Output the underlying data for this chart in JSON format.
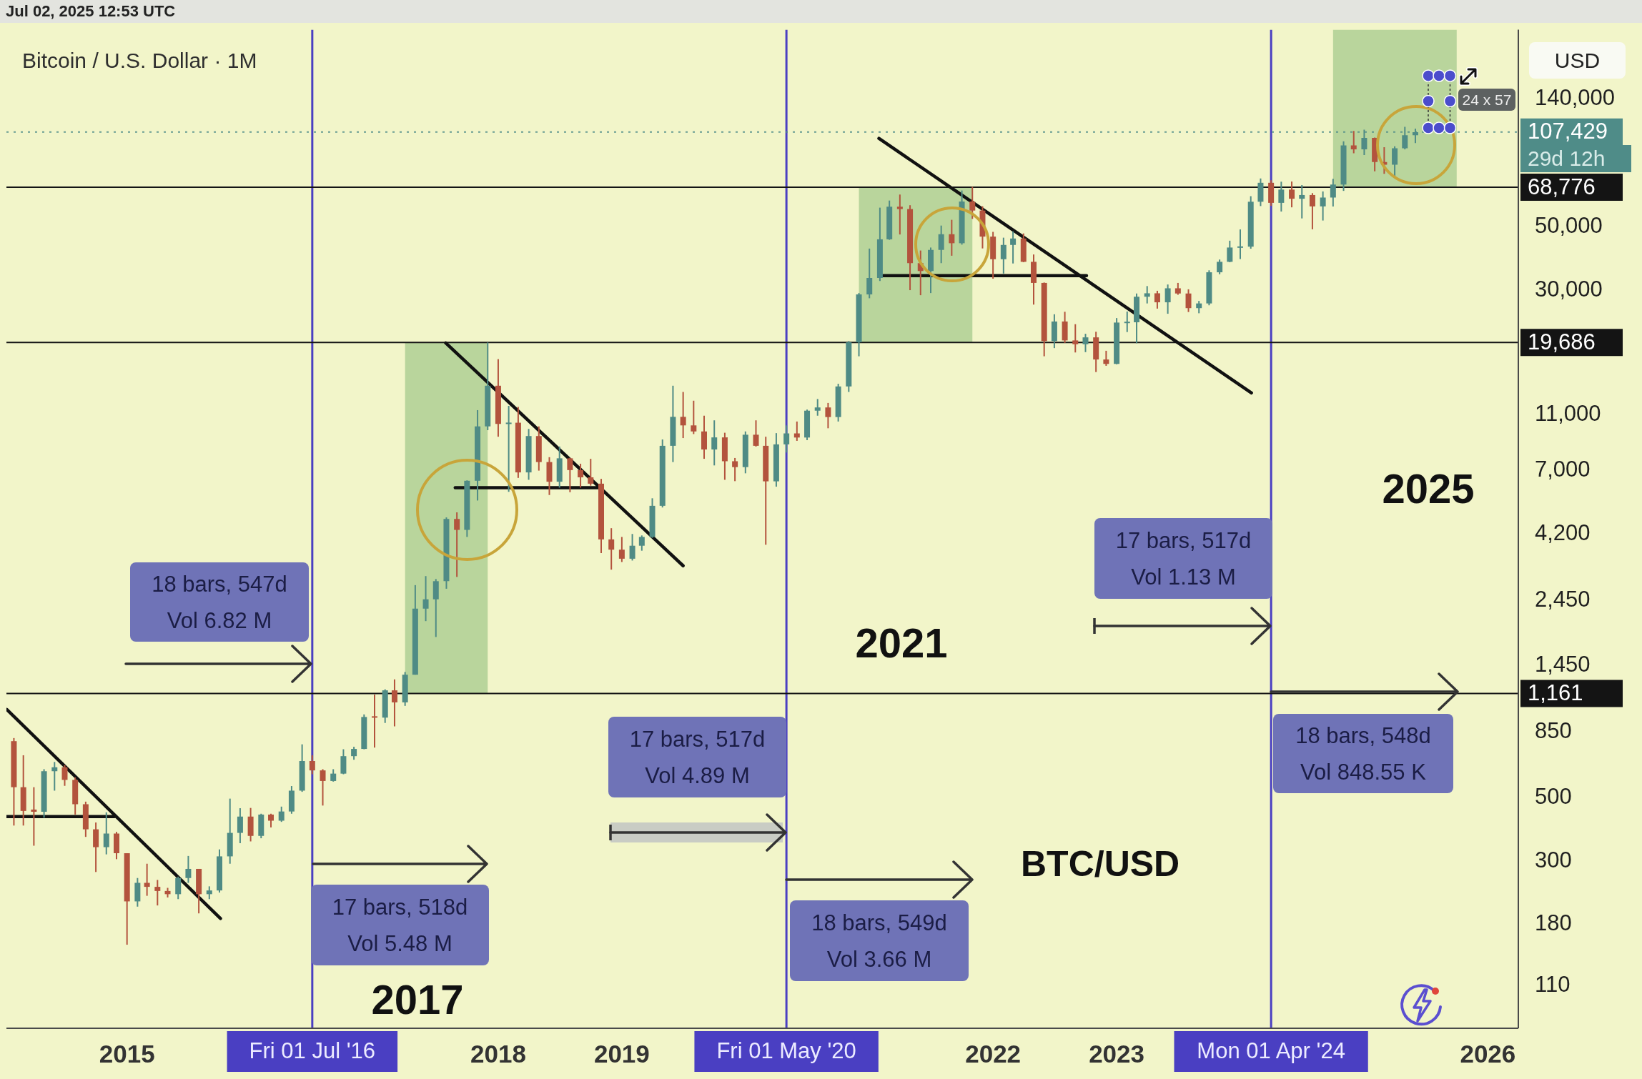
{
  "chart_data": {
    "type": "candlestick",
    "title": "Bitcoin / U.S. Dollar · 1M",
    "ylabel": "USD",
    "log": true,
    "xlim": [
      "2014-01-10",
      "2026-04-01"
    ],
    "xticks": [
      "2015",
      "2018",
      "2019",
      "2022",
      "2023",
      "2026"
    ],
    "ylim": [
      78,
      245000
    ],
    "yticks": [
      110,
      180,
      300,
      500,
      850,
      {
        "value": 1450,
        "label": "1,450"
      },
      {
        "value": 2450,
        "label": "2,450"
      },
      {
        "value": 4200,
        "label": "4,200"
      },
      {
        "value": 7000,
        "label": "7,000"
      },
      {
        "value": 11000,
        "label": "11,000"
      },
      {
        "value": 30000,
        "label": "30,000"
      },
      {
        "value": 50000,
        "label": "50,000"
      },
      {
        "value": 140000,
        "label": "140,000"
      }
    ],
    "series": [
      {
        "type": "candlestick",
        "x": [
          "2014-02",
          "2014-03",
          "2014-04",
          "2014-05",
          "2014-06",
          "2014-07",
          "2014-08",
          "2014-09",
          "2014-10",
          "2014-11",
          "2014-12",
          "2015-01",
          "2015-02",
          "2015-03",
          "2015-04",
          "2015-05",
          "2015-06",
          "2015-07",
          "2015-08",
          "2015-09",
          "2015-10",
          "2015-11",
          "2015-12",
          "2016-01",
          "2016-02",
          "2016-03",
          "2016-04",
          "2016-05",
          "2016-06",
          "2016-07",
          "2016-08",
          "2016-09",
          "2016-10",
          "2016-11",
          "2016-12",
          "2017-01",
          "2017-02",
          "2017-03",
          "2017-04",
          "2017-05",
          "2017-06",
          "2017-07",
          "2017-08",
          "2017-09",
          "2017-10",
          "2017-11",
          "2017-12",
          "2018-01",
          "2018-02",
          "2018-03",
          "2018-04",
          "2018-05",
          "2018-06",
          "2018-07",
          "2018-08",
          "2018-09",
          "2018-10",
          "2018-11",
          "2018-12",
          "2019-01",
          "2019-02",
          "2019-03",
          "2019-04",
          "2019-05",
          "2019-06",
          "2019-07",
          "2019-08",
          "2019-09",
          "2019-10",
          "2019-11",
          "2019-12",
          "2020-01",
          "2020-02",
          "2020-03",
          "2020-04",
          "2020-05",
          "2020-06",
          "2020-07",
          "2020-08",
          "2020-09",
          "2020-10",
          "2020-11",
          "2020-12",
          "2021-01",
          "2021-02",
          "2021-03",
          "2021-04",
          "2021-05",
          "2021-06",
          "2021-07",
          "2021-08",
          "2021-09",
          "2021-10",
          "2021-11",
          "2021-12",
          "2022-01",
          "2022-02",
          "2022-03",
          "2022-04",
          "2022-05",
          "2022-06",
          "2022-07",
          "2022-08",
          "2022-09",
          "2022-10",
          "2022-11",
          "2022-12",
          "2023-01",
          "2023-02",
          "2023-03",
          "2023-04",
          "2023-05",
          "2023-06",
          "2023-07",
          "2023-08",
          "2023-09",
          "2023-10",
          "2023-11",
          "2023-12",
          "2024-01",
          "2024-02",
          "2024-03",
          "2024-04",
          "2024-05",
          "2024-06",
          "2024-07",
          "2024-08",
          "2024-09",
          "2024-10",
          "2024-11",
          "2024-12",
          "2025-01",
          "2025-02",
          "2025-03",
          "2025-04",
          "2025-05",
          "2025-06"
        ],
        "ohlc": [
          [
            790,
            810,
            400,
            545
          ],
          [
            545,
            705,
            400,
            450
          ],
          [
            455,
            545,
            340,
            447
          ],
          [
            447,
            630,
            426,
            620
          ],
          [
            620,
            668,
            530,
            640
          ],
          [
            640,
            651,
            551,
            578
          ],
          [
            578,
            590,
            437,
            475
          ],
          [
            475,
            485,
            365,
            388
          ],
          [
            388,
            410,
            275,
            336
          ],
          [
            336,
            445,
            317,
            375
          ],
          [
            375,
            380,
            305,
            320
          ],
          [
            320,
            320,
            153,
            217
          ],
          [
            217,
            262,
            208,
            252
          ],
          [
            252,
            294,
            227,
            244
          ],
          [
            244,
            258,
            210,
            236
          ],
          [
            236,
            242,
            224,
            230
          ],
          [
            230,
            265,
            221,
            262
          ],
          [
            262,
            313,
            252,
            282
          ],
          [
            282,
            282,
            197,
            230
          ],
          [
            230,
            245,
            221,
            237
          ],
          [
            237,
            330,
            233,
            312
          ],
          [
            312,
            497,
            294,
            377
          ],
          [
            377,
            460,
            347,
            430
          ],
          [
            430,
            461,
            352,
            368
          ],
          [
            368,
            440,
            361,
            437
          ],
          [
            437,
            440,
            394,
            416
          ],
          [
            416,
            466,
            412,
            448
          ],
          [
            448,
            550,
            440,
            530
          ],
          [
            530,
            770,
            525,
            673
          ],
          [
            673,
            705,
            605,
            624
          ],
          [
            624,
            630,
            470,
            573
          ],
          [
            573,
            630,
            570,
            608
          ],
          [
            608,
            740,
            605,
            700
          ],
          [
            700,
            755,
            680,
            742
          ],
          [
            742,
            980,
            740,
            960
          ],
          [
            965,
            1150,
            750,
            955
          ],
          [
            955,
            1200,
            915,
            1190
          ],
          [
            1190,
            1300,
            890,
            1080
          ],
          [
            1080,
            1380,
            1050,
            1350
          ],
          [
            1350,
            2780,
            1350,
            2300
          ],
          [
            2300,
            2990,
            2080,
            2480
          ],
          [
            2480,
            2920,
            1830,
            2870
          ],
          [
            2870,
            4800,
            2700,
            4740
          ],
          [
            4740,
            5000,
            2970,
            4340
          ],
          [
            4340,
            6470,
            4100,
            6450
          ],
          [
            6450,
            11400,
            5500,
            10000
          ],
          [
            10000,
            19670,
            9700,
            13880
          ],
          [
            13880,
            17200,
            9200,
            10200
          ],
          [
            10200,
            11800,
            5900,
            10300
          ],
          [
            10300,
            11700,
            6600,
            6900
          ],
          [
            6900,
            9800,
            6500,
            9250
          ],
          [
            9250,
            10000,
            7000,
            7500
          ],
          [
            7500,
            7800,
            5750,
            6400
          ],
          [
            6400,
            8500,
            6100,
            7730
          ],
          [
            7730,
            7760,
            5880,
            7030
          ],
          [
            7030,
            7400,
            6100,
            6630
          ],
          [
            6630,
            7700,
            6200,
            6300
          ],
          [
            6300,
            6550,
            3600,
            4020
          ],
          [
            4020,
            4400,
            3150,
            3700
          ],
          [
            3700,
            4100,
            3350,
            3440
          ],
          [
            3440,
            4200,
            3390,
            3820
          ],
          [
            3820,
            4150,
            3670,
            4100
          ],
          [
            4100,
            5600,
            4070,
            5270
          ],
          [
            5270,
            9000,
            5200,
            8550
          ],
          [
            8550,
            13880,
            7500,
            10800
          ],
          [
            10800,
            13200,
            9100,
            10080
          ],
          [
            10080,
            12300,
            9400,
            9600
          ],
          [
            9600,
            10900,
            7700,
            8300
          ],
          [
            8300,
            10500,
            7300,
            9150
          ],
          [
            9150,
            9500,
            6500,
            7550
          ],
          [
            7550,
            7750,
            6430,
            7200
          ],
          [
            7200,
            9600,
            6850,
            9350
          ],
          [
            9350,
            10500,
            8500,
            8550
          ],
          [
            8550,
            9200,
            3850,
            6420
          ],
          [
            6420,
            9470,
            6150,
            8650
          ],
          [
            8650,
            10080,
            8100,
            9450
          ],
          [
            9450,
            10400,
            8900,
            9140
          ],
          [
            9140,
            11450,
            8950,
            11350
          ],
          [
            11350,
            12470,
            10900,
            11650
          ],
          [
            11650,
            12080,
            9850,
            10780
          ],
          [
            10780,
            14100,
            10400,
            13800
          ],
          [
            13800,
            19900,
            13200,
            19700
          ],
          [
            19700,
            29300,
            17600,
            28990
          ],
          [
            28990,
            41950,
            28100,
            33100
          ],
          [
            33100,
            58350,
            32300,
            45200
          ],
          [
            45200,
            61790,
            45000,
            58800
          ],
          [
            58800,
            64850,
            47000,
            57700
          ],
          [
            57700,
            59500,
            30000,
            37300
          ],
          [
            37300,
            41300,
            28800,
            35000
          ],
          [
            35000,
            42300,
            29300,
            41500
          ],
          [
            41500,
            50500,
            37300,
            47100
          ],
          [
            47100,
            52900,
            39600,
            43800
          ],
          [
            43800,
            67000,
            43300,
            61300
          ],
          [
            61300,
            69000,
            53300,
            57000
          ],
          [
            57000,
            59000,
            42000,
            46200
          ],
          [
            46200,
            48000,
            32900,
            38500
          ],
          [
            38500,
            45800,
            34300,
            43200
          ],
          [
            43200,
            48200,
            37200,
            45500
          ],
          [
            45500,
            47400,
            37600,
            37700
          ],
          [
            37700,
            40000,
            26700,
            31800
          ],
          [
            31800,
            31900,
            17600,
            19900
          ],
          [
            19900,
            24700,
            18800,
            23300
          ],
          [
            23300,
            25200,
            19600,
            20000
          ],
          [
            20000,
            22800,
            18150,
            19400
          ],
          [
            19400,
            21100,
            18200,
            20500
          ],
          [
            20500,
            21450,
            15500,
            17150
          ],
          [
            17150,
            18400,
            16300,
            16550
          ],
          [
            16550,
            23950,
            16500,
            23100
          ],
          [
            23100,
            25250,
            21400,
            23150
          ],
          [
            23150,
            29200,
            19550,
            28450
          ],
          [
            28450,
            31000,
            26950,
            29250
          ],
          [
            29250,
            29850,
            25850,
            27200
          ],
          [
            27200,
            31400,
            24800,
            30450
          ],
          [
            30450,
            31800,
            28900,
            29200
          ],
          [
            29200,
            30200,
            25150,
            25950
          ],
          [
            25950,
            27500,
            24900,
            26950
          ],
          [
            26950,
            35200,
            26550,
            34650
          ],
          [
            34650,
            38400,
            34100,
            37700
          ],
          [
            37700,
            44700,
            37600,
            42300
          ],
          [
            42300,
            48950,
            38550,
            42600
          ],
          [
            42600,
            64000,
            41900,
            61200
          ],
          [
            61200,
            73800,
            59100,
            71300
          ],
          [
            71300,
            72800,
            59200,
            60650
          ],
          [
            60650,
            71950,
            56550,
            67500
          ],
          [
            67500,
            72000,
            58500,
            62700
          ],
          [
            62700,
            70000,
            53500,
            64600
          ],
          [
            64600,
            65600,
            49000,
            58950
          ],
          [
            58950,
            66500,
            52600,
            63300
          ],
          [
            63300,
            73600,
            58900,
            70300
          ],
          [
            70300,
            99600,
            66800,
            96400
          ],
          [
            96400,
            108300,
            90500,
            93400
          ],
          [
            93400,
            109400,
            89200,
            102400
          ],
          [
            102400,
            102700,
            78200,
            84350
          ],
          [
            84350,
            95000,
            76600,
            82500
          ],
          [
            82500,
            95700,
            74500,
            94200
          ],
          [
            94200,
            112000,
            93350,
            104600
          ],
          [
            104600,
            110400,
            98200,
            107150
          ]
        ],
        "colors": [
          "#b3533d",
          "#b3533d",
          "#b3533d",
          "#4f8b85",
          "#4f8b85",
          "#b3533d",
          "#b3533d",
          "#b3533d",
          "#b3533d",
          "#4f8b85",
          "#b3533d",
          "#b3533d",
          "#4f8b85",
          "#b3533d",
          "#b3533d",
          "#b3533d",
          "#4f8b85",
          "#4f8b85",
          "#b3533d",
          "#4f8b85",
          "#4f8b85",
          "#4f8b85",
          "#4f8b85",
          "#b3533d",
          "#4f8b85",
          "#b3533d",
          "#4f8b85",
          "#4f8b85",
          "#4f8b85",
          "#b3533d",
          "#b3533d",
          "#4f8b85",
          "#4f8b85",
          "#4f8b85",
          "#4f8b85",
          "#b3533d",
          "#4f8b85",
          "#b3533d",
          "#4f8b85",
          "#4f8b85",
          "#4f8b85",
          "#4f8b85",
          "#4f8b85",
          "#b3533d",
          "#4f8b85",
          "#4f8b85",
          "#4f8b85",
          "#b3533d",
          "#4f8b85",
          "#b3533d",
          "#4f8b85",
          "#b3533d",
          "#b3533d",
          "#4f8b85",
          "#b3533d",
          "#b3533d",
          "#b3533d",
          "#b3533d",
          "#b3533d",
          "#b3533d",
          "#4f8b85",
          "#4f8b85",
          "#4f8b85",
          "#4f8b85",
          "#4f8b85",
          "#b3533d",
          "#b3533d",
          "#b3533d",
          "#4f8b85",
          "#b3533d",
          "#b3533d",
          "#4f8b85",
          "#b3533d",
          "#b3533d",
          "#4f8b85",
          "#4f8b85",
          "#b3533d",
          "#4f8b85",
          "#4f8b85",
          "#b3533d",
          "#4f8b85",
          "#4f8b85",
          "#4f8b85",
          "#4f8b85",
          "#4f8b85",
          "#4f8b85",
          "#b3533d",
          "#b3533d",
          "#b3533d",
          "#4f8b85",
          "#4f8b85",
          "#b3533d",
          "#4f8b85",
          "#b3533d",
          "#b3533d",
          "#b3533d",
          "#4f8b85",
          "#4f8b85",
          "#b3533d",
          "#b3533d",
          "#b3533d",
          "#4f8b85",
          "#b3533d",
          "#b3533d",
          "#4f8b85",
          "#b3533d",
          "#b3533d",
          "#4f8b85",
          "#4f8b85",
          "#4f8b85",
          "#4f8b85",
          "#b3533d",
          "#4f8b85",
          "#b3533d",
          "#b3533d",
          "#4f8b85",
          "#4f8b85",
          "#4f8b85",
          "#4f8b85",
          "#4f8b85",
          "#4f8b85",
          "#4f8b85",
          "#b3533d",
          "#4f8b85",
          "#b3533d",
          "#4f8b85",
          "#b3533d",
          "#4f8b85",
          "#4f8b85",
          "#4f8b85",
          "#b3533d",
          "#4f8b85",
          "#b3533d",
          "#b3533d",
          "#4f8b85",
          "#4f8b85",
          "#4f8b85"
        ]
      },
      {
        "type": "line",
        "x": [
          "2014-01-11",
          "2015-10-04"
        ],
        "values": [
          1020,
          189
        ],
        "color": "#111111"
      },
      {
        "type": "line",
        "x": [
          "2014-01-11",
          "2014-11-25"
        ],
        "values": [
          430,
          430
        ],
        "color": "#111111"
      },
      {
        "type": "line",
        "x": [
          "2017-07-30",
          "2019-07-01"
        ],
        "values": [
          19600,
          3250
        ],
        "color": "#111111"
      },
      {
        "type": "line",
        "x": [
          "2017-08-27",
          "2018-10-29"
        ],
        "values": [
          6100,
          6100
        ],
        "color": "#111111"
      },
      {
        "type": "line",
        "x": [
          "2021-01-29",
          "2024-02-03"
        ],
        "values": [
          102000,
          13100
        ],
        "color": "#111111"
      },
      {
        "type": "line",
        "x": [
          "2021-02-11",
          "2022-10-04"
        ],
        "values": [
          33700,
          33700
        ],
        "color": "#111111"
      }
    ],
    "ref_lines": [
      {
        "axis": "x",
        "value": "2016-07-01",
        "label": "Fri 01 Jul '16",
        "color": "#4a3fc2"
      },
      {
        "axis": "x",
        "value": "2020-05-01",
        "label": "Fri 01 May '20",
        "color": "#4a3fc2"
      },
      {
        "axis": "x",
        "value": "2024-04-01",
        "label": "Mon 01 Apr '24",
        "color": "#4a3fc2"
      },
      {
        "axis": "y",
        "value": 1161,
        "label": "1,161",
        "color": "#141414"
      },
      {
        "axis": "y",
        "value": 19686,
        "label": "19,686",
        "color": "#141414"
      },
      {
        "axis": "y",
        "value": 68776,
        "label": "68,776",
        "color": "#141414"
      },
      {
        "axis": "y",
        "value": 107429,
        "label": "107,429",
        "color": "#4f8c88",
        "line_style": "dotted"
      }
    ],
    "bands": [
      {
        "axis": "x",
        "from": "2017-04",
        "to": "2017-12",
        "color": "#b9d59c"
      },
      {
        "axis": "x",
        "from": "2020-12",
        "to": "2021-11",
        "color": "#b9d59c"
      },
      {
        "axis": "x",
        "from": "2024-10",
        "to": "2025-10",
        "color": "#b9d59c"
      }
    ],
    "annotations": [
      "Jul 02, 2025 12:53 UTC",
      "18 bars, 547d\nVol 6.82 M",
      "17 bars, 518d\nVol 5.48 M",
      "17 bars, 517d\nVol 4.89 M",
      "18 bars, 549d\nVol 3.66 M",
      "17 bars, 517d\nVol 1.13 M",
      "18 bars, 548d\nVol 848.55 K",
      "2017",
      "2021",
      "2025",
      "BTC/USD",
      "24 x 57",
      "29d 12h"
    ]
  }
}
